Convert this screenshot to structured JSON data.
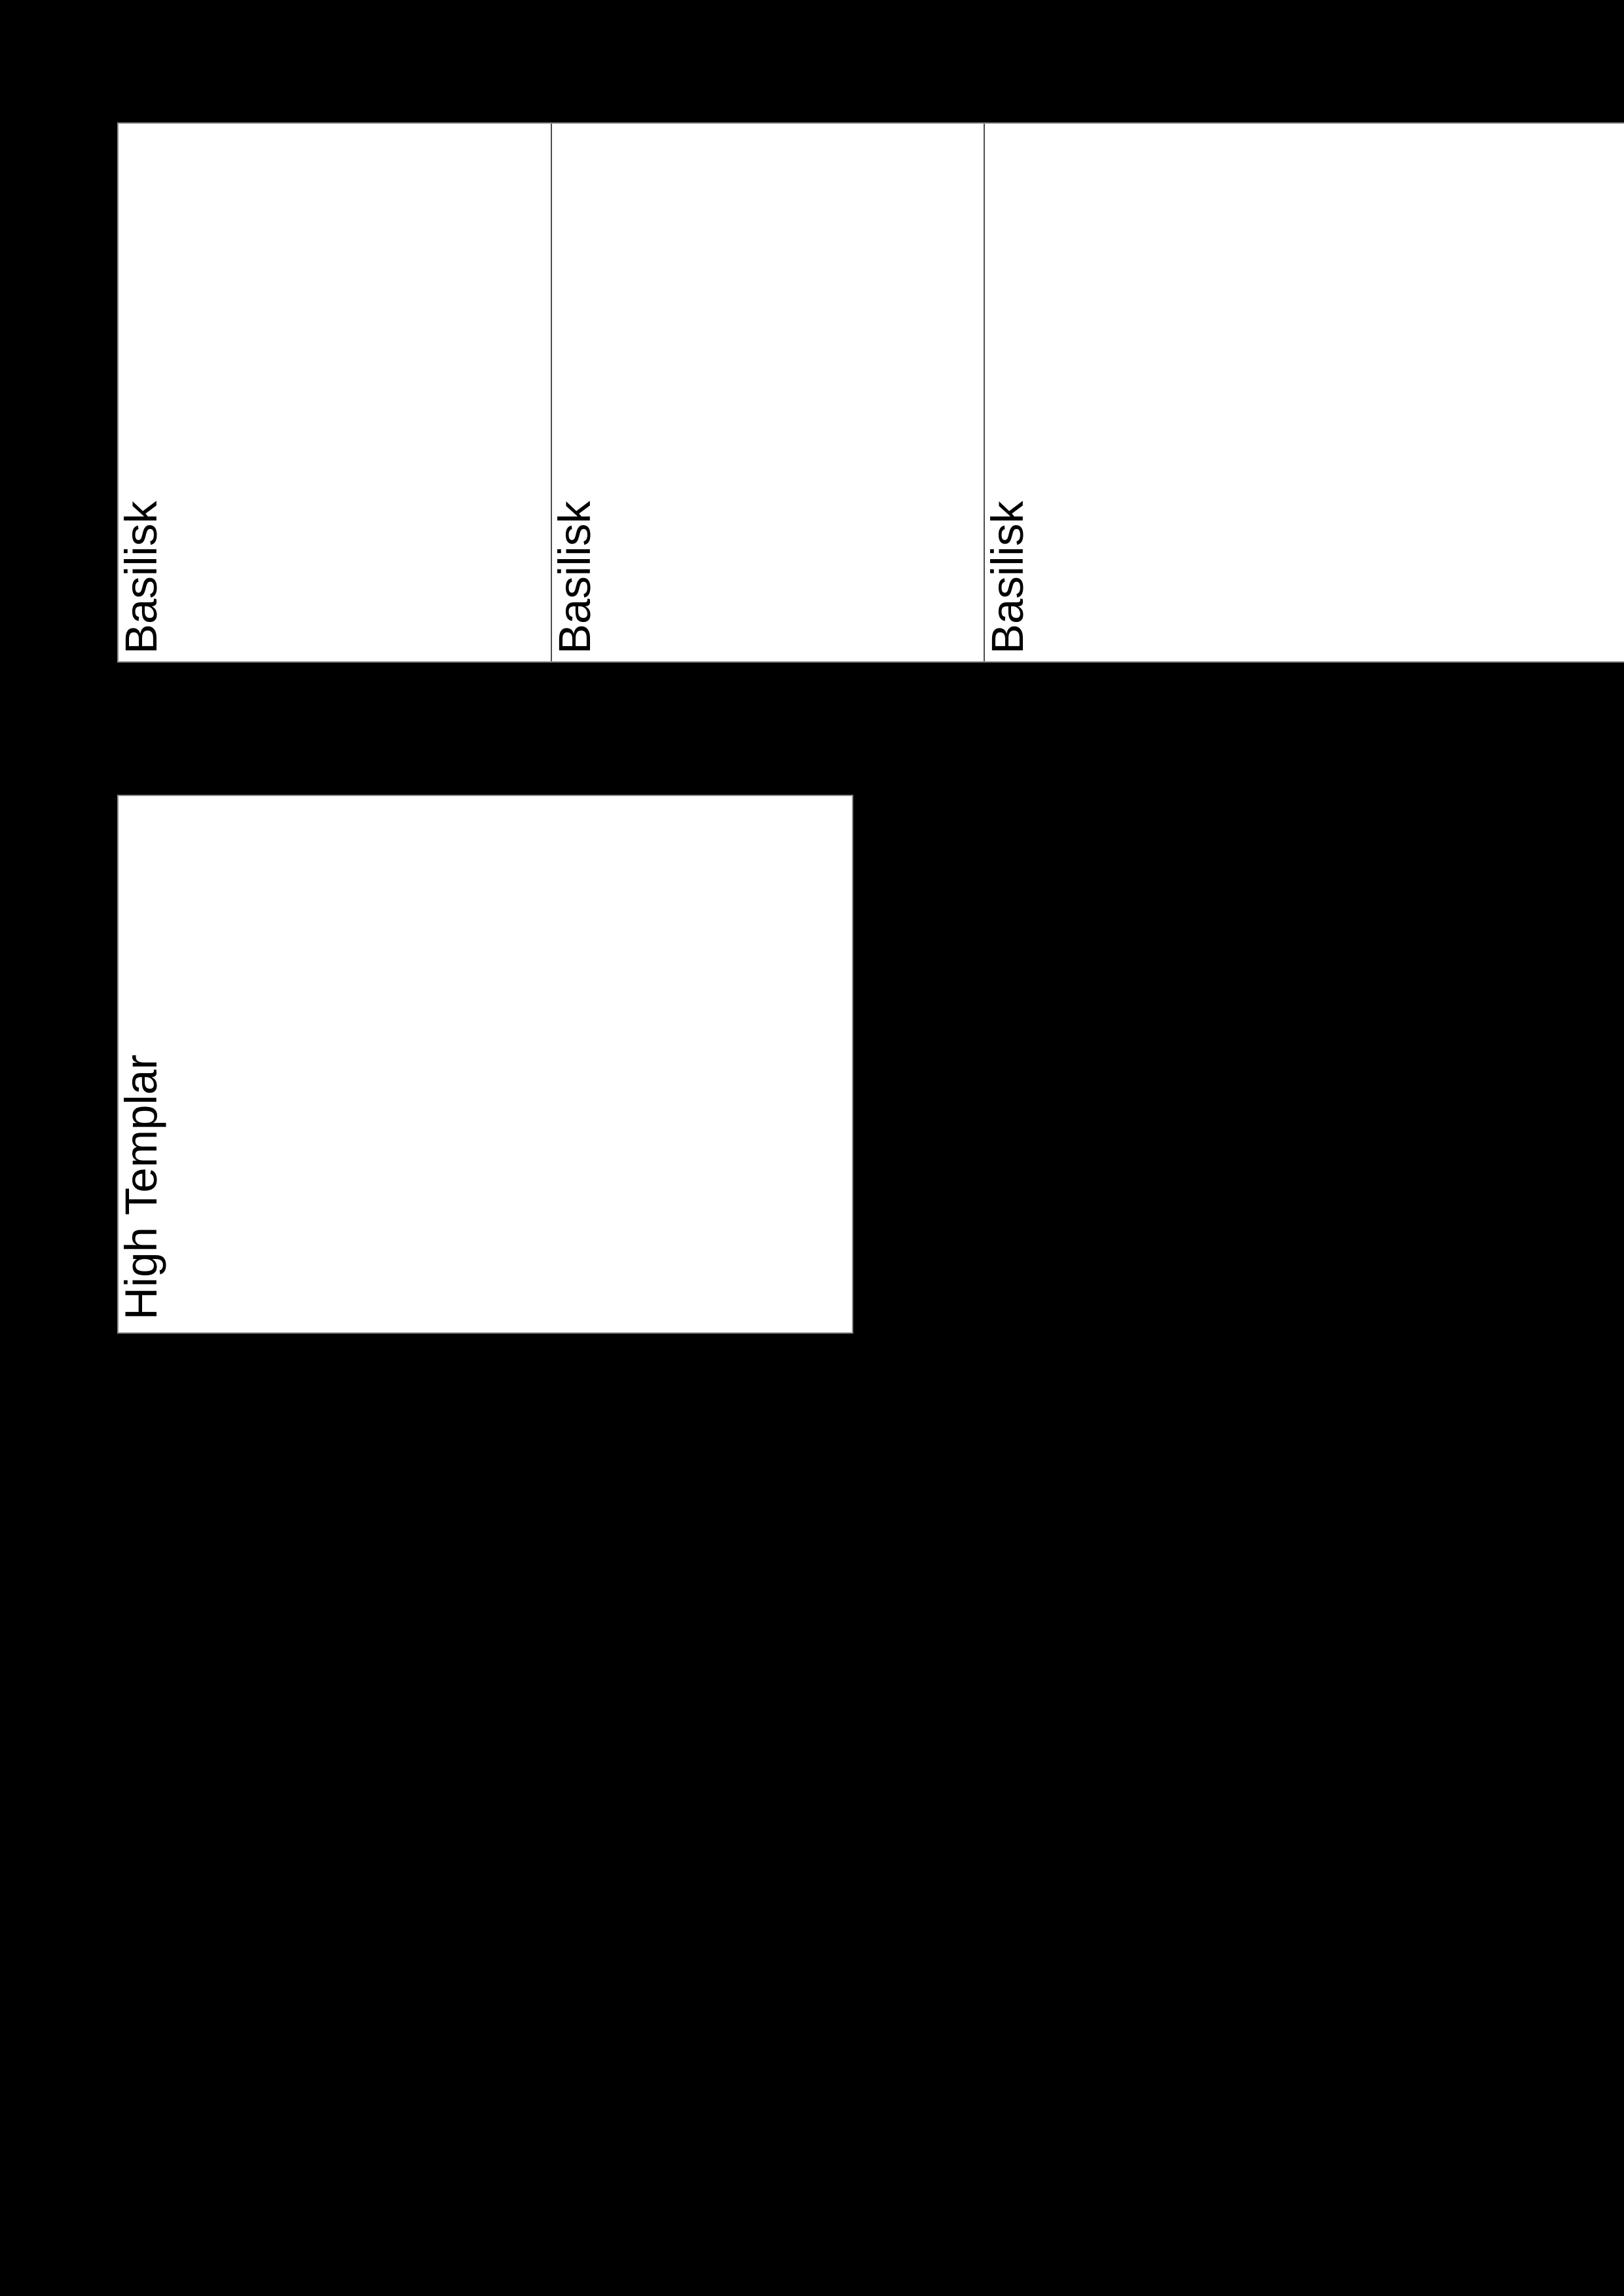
{
  "page": {
    "background_color": "#000000",
    "card_background": "#ffffff",
    "card_border_color": "#8f8f8f",
    "divider_color": "#4d4d4d",
    "label_color": "#000000"
  },
  "cards": [
    {
      "label": "Basilisk"
    },
    {
      "label": "Basilisk"
    },
    {
      "label": "Basilisk"
    },
    {
      "label": "High Templar"
    }
  ]
}
